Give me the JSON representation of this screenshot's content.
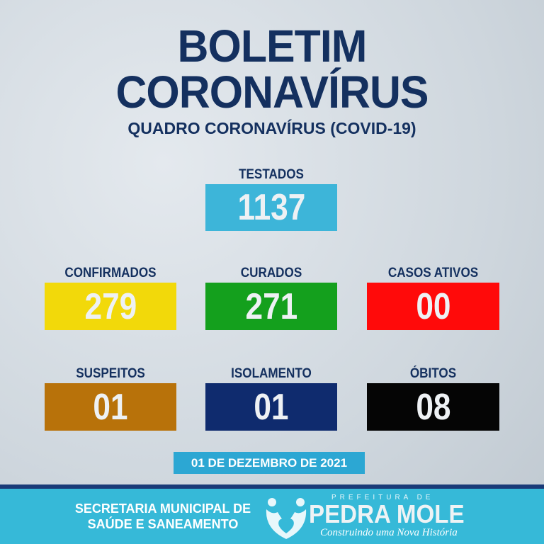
{
  "header": {
    "title_line1": "BOLETIM",
    "title_line2": "CORONAVÍRUS",
    "subtitle": "QUADRO CORONAVÍRUS (COVID-19)"
  },
  "stats": {
    "testados": {
      "label": "TESTADOS",
      "value": "1137",
      "color": "#3db5d9"
    },
    "confirmados": {
      "label": "CONFIRMADOS",
      "value": "279",
      "color": "#f2d90a"
    },
    "curados": {
      "label": "CURADOS",
      "value": "271",
      "color": "#14a01d"
    },
    "casos_ativos": {
      "label": "CASOS ATIVOS",
      "value": "00",
      "color": "#ff0a0a"
    },
    "suspeitos": {
      "label": "SUSPEITOS",
      "value": "01",
      "color": "#b8720a"
    },
    "isolamento": {
      "label": "ISOLAMENTO",
      "value": "01",
      "color": "#0f2b6e"
    },
    "obitos": {
      "label": "ÓBITOS",
      "value": "08",
      "color": "#050505"
    }
  },
  "date": "01 DE DEZEMBRO DE 2021",
  "footer": {
    "secretaria_line1": "SECRETARIA MUNICIPAL DE",
    "secretaria_line2": "SAÚDE E SANEAMENTO",
    "logo_top": "PREFEITURA DE",
    "logo_name": "PEDRA MOLE",
    "logo_slogan": "Construindo uma Nova História"
  }
}
